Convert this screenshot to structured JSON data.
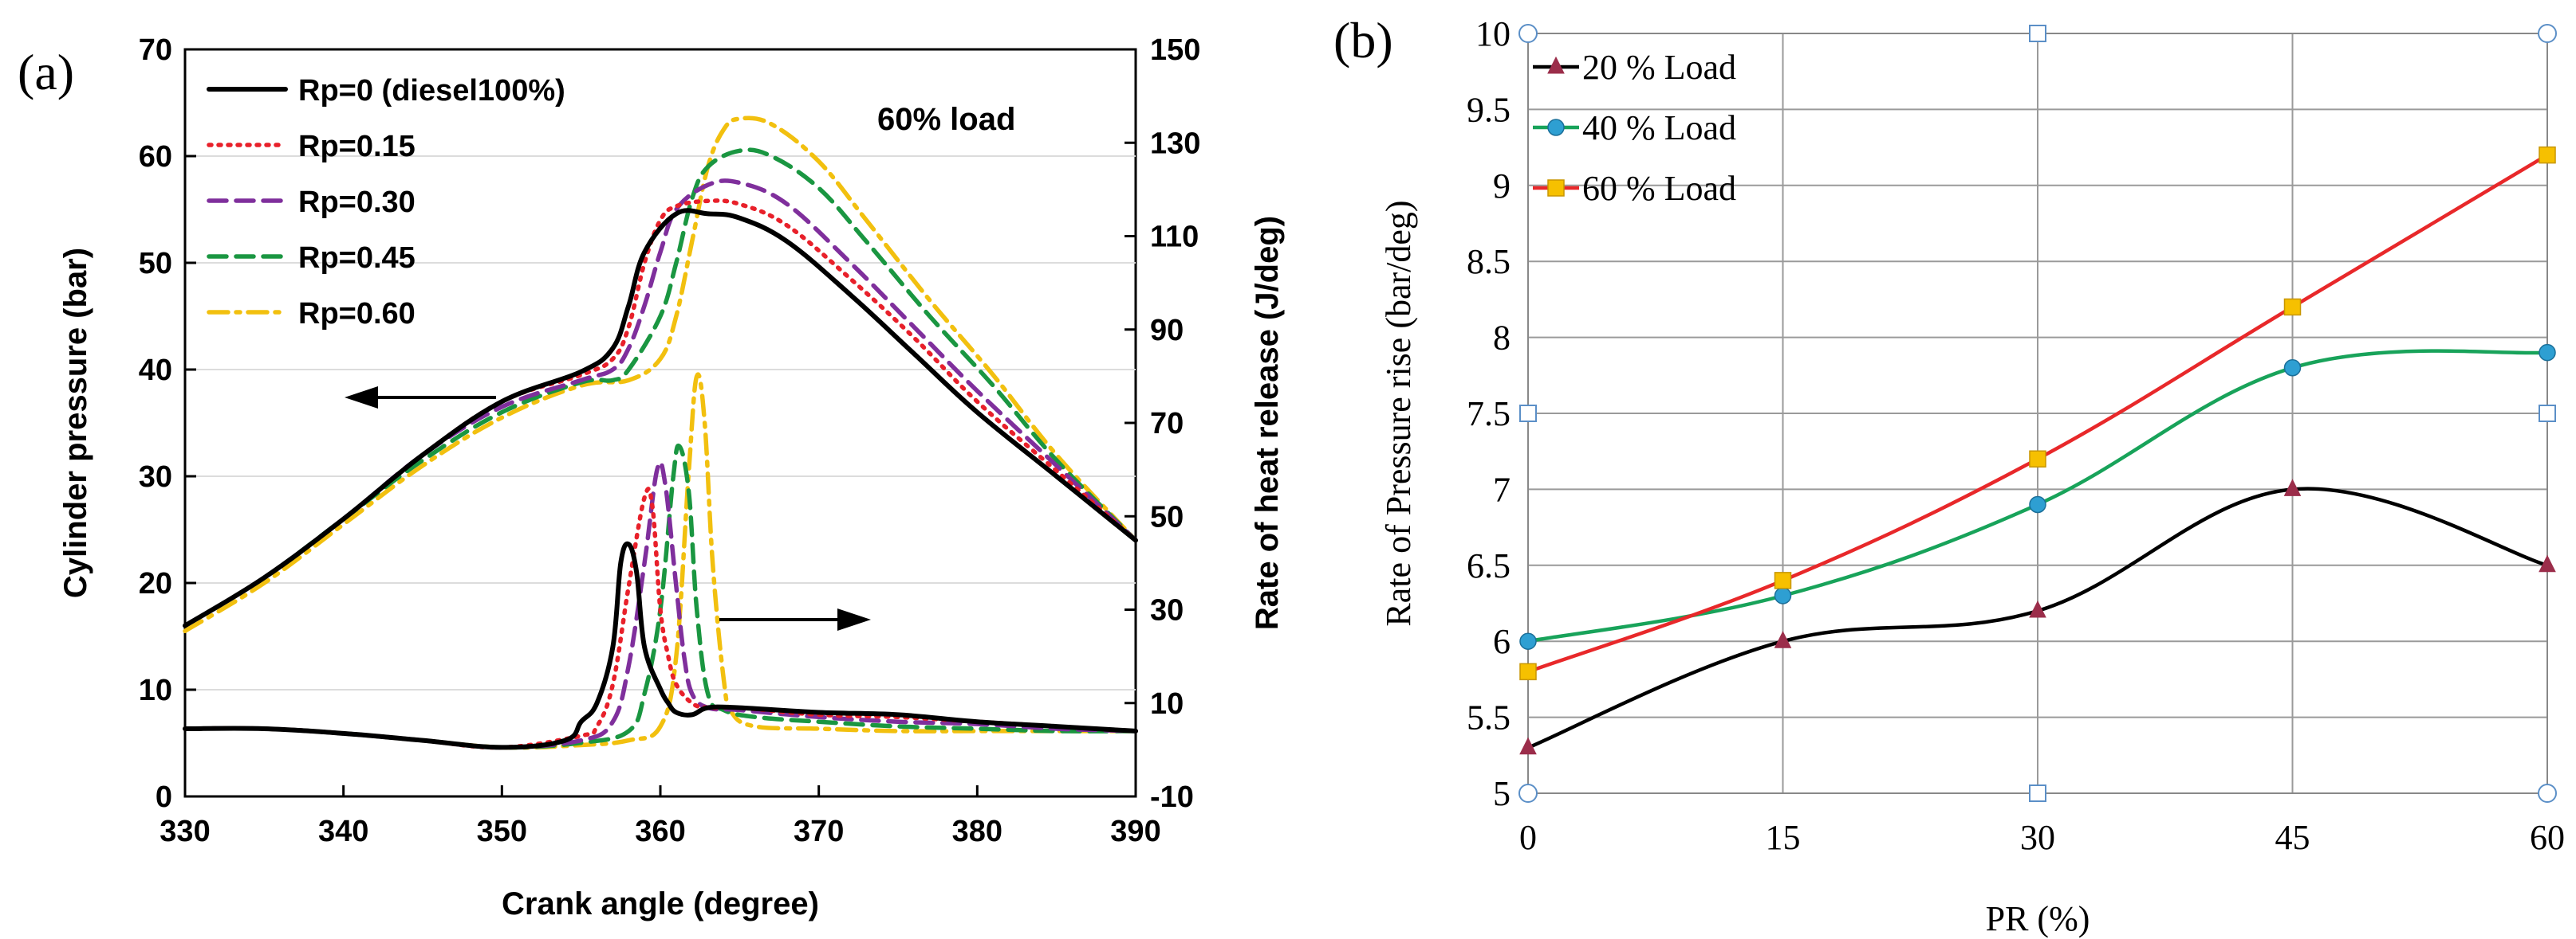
{
  "panel_a": {
    "label": "(a)",
    "annotation": "60% load",
    "left_axis_arrow": "pressure curves read on left axis",
    "right_axis_arrow": "heat release curves read on right axis"
  },
  "panel_b": {
    "label": "(b)"
  },
  "chart_data": [
    {
      "type": "line",
      "title": "",
      "xlabel": "Crank angle (degree)",
      "ylabel": "Cylinder pressure (bar)",
      "y2label": "Rate of heat release (J/deg)",
      "xlim": [
        330,
        390
      ],
      "ylim": [
        0,
        70
      ],
      "y2lim": [
        -10,
        150
      ],
      "xticks": [
        "330",
        "340",
        "350",
        "360",
        "370",
        "380",
        "390"
      ],
      "yticks": [
        "0",
        "10",
        "20",
        "30",
        "40",
        "50",
        "60",
        "70"
      ],
      "y2ticks": [
        "-10",
        "10",
        "30",
        "50",
        "70",
        "90",
        "110",
        "130",
        "150"
      ],
      "legend_position": "top-left",
      "series": [
        {
          "name": "Rp=0 (diesel100%)",
          "color": "#000000",
          "dash": "solid",
          "pressure": [
            [
              330,
              16
            ],
            [
              335,
              20.5
            ],
            [
              340,
              26
            ],
            [
              345,
              32
            ],
            [
              350,
              37
            ],
            [
              355,
              39.8
            ],
            [
              357,
              42
            ],
            [
              358,
              46
            ],
            [
              359,
              51
            ],
            [
              361,
              54.6
            ],
            [
              363,
              54.6
            ],
            [
              365,
              54.2
            ],
            [
              368,
              52
            ],
            [
              372,
              47
            ],
            [
              376,
              41.5
            ],
            [
              380,
              36
            ],
            [
              385,
              30
            ],
            [
              390,
              24
            ]
          ],
          "heat_release": [
            [
              330,
              4.5
            ],
            [
              335,
              4.5
            ],
            [
              340,
              3.5
            ],
            [
              345,
              2
            ],
            [
              350,
              0.5
            ],
            [
              354,
              2
            ],
            [
              355,
              6
            ],
            [
              356,
              10
            ],
            [
              357,
              22
            ],
            [
              357.5,
              40
            ],
            [
              358,
              44
            ],
            [
              358.5,
              38
            ],
            [
              359,
              22
            ],
            [
              360,
              13
            ],
            [
              360.5,
              10
            ],
            [
              361,
              8
            ],
            [
              362,
              7.5
            ],
            [
              363,
              9
            ],
            [
              365,
              9
            ],
            [
              370,
              8
            ],
            [
              375,
              7.5
            ],
            [
              380,
              6
            ],
            [
              385,
              5
            ],
            [
              390,
              4
            ]
          ]
        },
        {
          "name": "Rp=0.15",
          "color": "#e8202a",
          "dash": "dotted",
          "pressure": [
            [
              330,
              16
            ],
            [
              335,
              20.5
            ],
            [
              340,
              26
            ],
            [
              345,
              32
            ],
            [
              350,
              37
            ],
            [
              355,
              39.5
            ],
            [
              357,
              41
            ],
            [
              358,
              44
            ],
            [
              359,
              50
            ],
            [
              360,
              54
            ],
            [
              361,
              55.3
            ],
            [
              363,
              55.8
            ],
            [
              365,
              55.5
            ],
            [
              368,
              53.5
            ],
            [
              372,
              48.5
            ],
            [
              376,
              43
            ],
            [
              380,
              37
            ],
            [
              385,
              30.5
            ],
            [
              390,
              24
            ]
          ],
          "heat_release": [
            [
              330,
              4.5
            ],
            [
              335,
              4.5
            ],
            [
              340,
              3.5
            ],
            [
              345,
              2
            ],
            [
              350,
              0.5
            ],
            [
              355,
              3
            ],
            [
              356,
              5
            ],
            [
              357,
              14
            ],
            [
              358,
              35
            ],
            [
              359,
              54
            ],
            [
              359.5,
              52
            ],
            [
              360,
              30
            ],
            [
              360.5,
              20
            ],
            [
              361,
              14
            ],
            [
              362,
              10
            ],
            [
              363,
              9
            ],
            [
              365,
              9
            ],
            [
              370,
              7.5
            ],
            [
              375,
              7
            ],
            [
              380,
              6
            ],
            [
              385,
              5
            ],
            [
              390,
              4
            ]
          ]
        },
        {
          "name": "Rp=0.30",
          "color": "#7f2f9c",
          "dash": "dashed",
          "pressure": [
            [
              330,
              16
            ],
            [
              335,
              20.5
            ],
            [
              340,
              26
            ],
            [
              345,
              32
            ],
            [
              350,
              36.5
            ],
            [
              355,
              39
            ],
            [
              357,
              40
            ],
            [
              358,
              42
            ],
            [
              359,
              46
            ],
            [
              360,
              51
            ],
            [
              361,
              55
            ],
            [
              363,
              57.3
            ],
            [
              365,
              57.5
            ],
            [
              368,
              55.5
            ],
            [
              372,
              50
            ],
            [
              376,
              44
            ],
            [
              380,
              38
            ],
            [
              385,
              31
            ],
            [
              390,
              24
            ]
          ],
          "heat_release": [
            [
              330,
              4.5
            ],
            [
              335,
              4.5
            ],
            [
              340,
              3.5
            ],
            [
              345,
              2
            ],
            [
              350,
              0.5
            ],
            [
              355,
              2
            ],
            [
              357,
              6
            ],
            [
              358,
              18
            ],
            [
              359,
              40
            ],
            [
              359.8,
              60
            ],
            [
              360.3,
              57
            ],
            [
              361,
              35
            ],
            [
              361.5,
              20
            ],
            [
              362,
              12
            ],
            [
              363,
              9
            ],
            [
              365,
              8.5
            ],
            [
              370,
              7
            ],
            [
              375,
              6
            ],
            [
              380,
              5.5
            ],
            [
              385,
              4.5
            ],
            [
              390,
              4
            ]
          ]
        },
        {
          "name": "Rp=0.45",
          "color": "#1a9641",
          "dash": "dashed",
          "pressure": [
            [
              330,
              16
            ],
            [
              335,
              20.5
            ],
            [
              340,
              26
            ],
            [
              345,
              31.5
            ],
            [
              350,
              36
            ],
            [
              355,
              38.8
            ],
            [
              357,
              39
            ],
            [
              358,
              40
            ],
            [
              360,
              45
            ],
            [
              361,
              50
            ],
            [
              362,
              56
            ],
            [
              363,
              59
            ],
            [
              365,
              60.5
            ],
            [
              367,
              60
            ],
            [
              370,
              57
            ],
            [
              373,
              52
            ],
            [
              377,
              45
            ],
            [
              381,
              38.5
            ],
            [
              385,
              31.5
            ],
            [
              390,
              24
            ]
          ],
          "heat_release": [
            [
              330,
              4.5
            ],
            [
              335,
              4.5
            ],
            [
              340,
              3.5
            ],
            [
              345,
              2
            ],
            [
              350,
              0.5
            ],
            [
              355,
              1.5
            ],
            [
              358,
              4
            ],
            [
              359,
              12
            ],
            [
              360,
              30
            ],
            [
              360.8,
              58
            ],
            [
              361.2,
              65
            ],
            [
              361.8,
              55
            ],
            [
              362.3,
              30
            ],
            [
              363,
              12
            ],
            [
              364,
              8.5
            ],
            [
              366,
              7
            ],
            [
              370,
              6
            ],
            [
              375,
              5
            ],
            [
              380,
              4.5
            ],
            [
              385,
              4
            ],
            [
              390,
              4
            ]
          ]
        },
        {
          "name": "Rp=0.60",
          "color": "#f2c00f",
          "dash": "dashdot",
          "pressure": [
            [
              330,
              15.5
            ],
            [
              335,
              20
            ],
            [
              340,
              25.5
            ],
            [
              345,
              31
            ],
            [
              350,
              35.5
            ],
            [
              355,
              38.5
            ],
            [
              358,
              39
            ],
            [
              360,
              41
            ],
            [
              361,
              45
            ],
            [
              362,
              52
            ],
            [
              363,
              59
            ],
            [
              364,
              62.5
            ],
            [
              365,
              63.5
            ],
            [
              367,
              63
            ],
            [
              370,
              59.5
            ],
            [
              373,
              54
            ],
            [
              377,
              46.5
            ],
            [
              381,
              39.5
            ],
            [
              385,
              32
            ],
            [
              390,
              24
            ]
          ],
          "heat_release": [
            [
              330,
              4.5
            ],
            [
              335,
              4.5
            ],
            [
              340,
              3.5
            ],
            [
              345,
              2
            ],
            [
              350,
              0.5
            ],
            [
              355,
              1
            ],
            [
              358,
              2
            ],
            [
              360,
              5
            ],
            [
              361,
              20
            ],
            [
              361.8,
              60
            ],
            [
              362.3,
              80
            ],
            [
              362.8,
              70
            ],
            [
              363.3,
              40
            ],
            [
              364,
              15
            ],
            [
              364.5,
              8
            ],
            [
              366,
              5
            ],
            [
              370,
              4.5
            ],
            [
              375,
              4
            ],
            [
              380,
              4
            ],
            [
              385,
              4
            ],
            [
              390,
              4
            ]
          ]
        }
      ]
    },
    {
      "type": "line",
      "title": "",
      "xlabel": "PR (%)",
      "ylabel": "Rate of Pressure rise (bar/deg)",
      "x": [
        0,
        15,
        30,
        45,
        60
      ],
      "xticks": [
        "0",
        "15",
        "30",
        "45",
        "60"
      ],
      "yticks": [
        "5",
        "5.5",
        "6",
        "6.5",
        "7",
        "7.5",
        "8",
        "8.5",
        "9",
        "9.5",
        "10"
      ],
      "ylim": [
        5,
        10
      ],
      "grid": true,
      "legend_position": "top-left",
      "series": [
        {
          "name": "20 % Load",
          "values": [
            5.3,
            6.0,
            6.2,
            7.0,
            6.5
          ],
          "color": "#000000",
          "marker_color": "#9b2d4a",
          "marker": "triangle"
        },
        {
          "name": "40 % Load",
          "values": [
            6.0,
            6.3,
            6.9,
            7.8,
            7.9
          ],
          "color": "#18a35a",
          "marker_color": "#2e9fd2",
          "marker": "circle"
        },
        {
          "name": "60 % Load",
          "values": [
            5.8,
            6.4,
            7.2,
            8.2,
            9.2
          ],
          "color": "#e8282a",
          "marker_color": "#f6c000",
          "marker": "square"
        }
      ],
      "frame_handles": [
        [
          0,
          10
        ],
        [
          30,
          10
        ],
        [
          60,
          10
        ],
        [
          0,
          7.5
        ],
        [
          60,
          7.5
        ],
        [
          0,
          5
        ],
        [
          30,
          5
        ],
        [
          60,
          5
        ]
      ]
    }
  ]
}
